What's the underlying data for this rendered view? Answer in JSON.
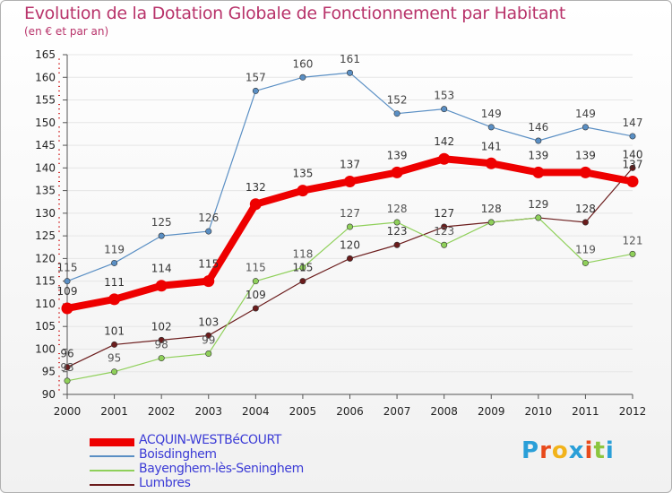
{
  "chart_data": {
    "type": "line",
    "title": "Evolution de la Dotation Globale de Fonctionnement par Habitant",
    "subtitle": "(en € et par an)",
    "xlabel": "",
    "ylabel": "",
    "x": [
      "2000",
      "2001",
      "2002",
      "2003",
      "2004",
      "2005",
      "2006",
      "2007",
      "2008",
      "2009",
      "2010",
      "2011",
      "2012"
    ],
    "ylim": [
      90,
      165
    ],
    "yticks": [
      90,
      95,
      100,
      105,
      110,
      115,
      120,
      125,
      130,
      135,
      140,
      145,
      150,
      155,
      160,
      165
    ],
    "series": [
      {
        "name": "Lumbres",
        "color": "#6b1c1c",
        "values": [
          96,
          101,
          102,
          103,
          109,
          115,
          120,
          123,
          127,
          128,
          129,
          128,
          140
        ]
      },
      {
        "name": "Bayenghem-lès-Seninghem",
        "color": "#8fd05a",
        "values": [
          93,
          95,
          98,
          99,
          115,
          118,
          127,
          128,
          123,
          128,
          129,
          119,
          121
        ]
      },
      {
        "name": "Boisdinghem",
        "color": "#5a8fc4",
        "values": [
          115,
          119,
          125,
          126,
          157,
          160,
          161,
          152,
          153,
          149,
          146,
          149,
          147
        ]
      },
      {
        "name": "ACQUIN-WESTBéCOURT",
        "color": "#ee0000",
        "values": [
          109,
          111,
          114,
          115,
          132,
          135,
          137,
          139,
          142,
          141,
          139,
          139,
          137
        ]
      }
    ],
    "legend": [
      "ACQUIN-WESTBéCOURT",
      "Boisdinghem",
      "Bayenghem-lès-Seninghem",
      "Lumbres"
    ],
    "legend_position": "bottom-left"
  },
  "logo": {
    "text": "Proxiti",
    "letters": [
      "P",
      "r",
      "o",
      "x",
      "i",
      "t",
      "i"
    ],
    "colors": [
      "#2a9fd8",
      "#e84a1c",
      "#f2b31b",
      "#2a9fd8",
      "#e84a1c",
      "#8cc63f",
      "#2a9fd8"
    ]
  }
}
